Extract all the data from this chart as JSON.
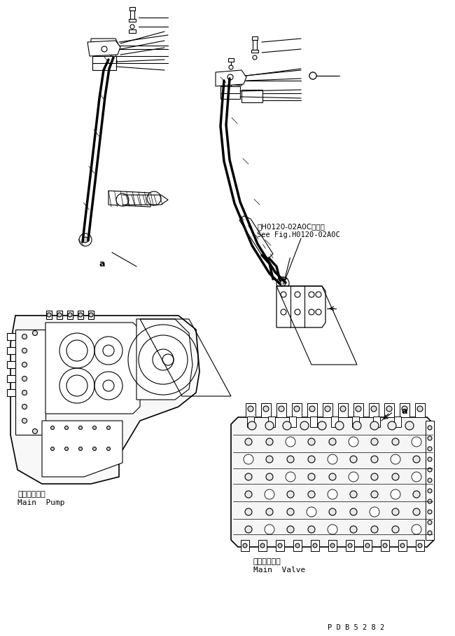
{
  "bg_color": "#ffffff",
  "line_color": "#000000",
  "line_width": 0.8,
  "fig_width": 6.5,
  "fig_height": 9.07,
  "dpi": 100,
  "text_main_pump_jp": "メインポンプ",
  "text_main_pump_en": "Main  Pump",
  "text_main_valve_jp": "メインバルブ",
  "text_main_valve_en": "Main  Valve",
  "text_ref_jp": "第H0120-02A0C図参照",
  "text_ref_en": "See Fig.H0120-02A0C",
  "text_a": "a",
  "text_code": "P D B 5 2 8 2"
}
